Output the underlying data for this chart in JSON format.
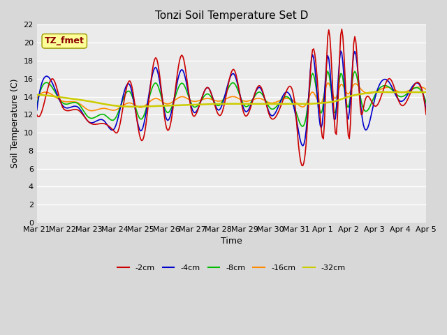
{
  "title": "Tonzi Soil Temperature Set D",
  "xlabel": "Time",
  "ylabel": "Soil Temperature (C)",
  "annotation": "TZ_fmet",
  "annotation_color": "#8B0000",
  "annotation_bg": "#FFFF99",
  "ylim": [
    0,
    22
  ],
  "yticks": [
    0,
    2,
    4,
    6,
    8,
    10,
    12,
    14,
    16,
    18,
    20,
    22
  ],
  "x_labels": [
    "Mar 21",
    "Mar 22",
    "Mar 23",
    "Mar 24",
    "Mar 25",
    "Mar 26",
    "Mar 27",
    "Mar 28",
    "Mar 29",
    "Mar 30",
    "Mar 31",
    "Apr 1",
    "Apr 2",
    "Apr 3",
    "Apr 4",
    "Apr 5"
  ],
  "series": {
    "-2cm": {
      "color": "#CC0000",
      "lw": 1.2
    },
    "-4cm": {
      "color": "#0000CC",
      "lw": 1.2
    },
    "-8cm": {
      "color": "#00BB00",
      "lw": 1.2
    },
    "-16cm": {
      "color": "#FF8C00",
      "lw": 1.2
    },
    "-32cm": {
      "color": "#CCCC00",
      "lw": 1.8
    }
  },
  "legend_order": [
    "-2cm",
    "-4cm",
    "-8cm",
    "-16cm",
    "-32cm"
  ],
  "bg_color": "#D8D8D8",
  "plot_bg": "#EBEBEB",
  "grid_color": "#FFFFFF",
  "title_fontsize": 11,
  "label_fontsize": 9,
  "tick_fontsize": 8
}
